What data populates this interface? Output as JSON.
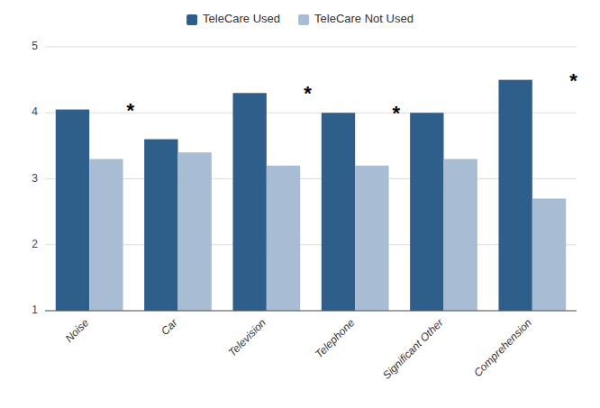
{
  "chart_data": {
    "type": "bar",
    "categories": [
      "Noise",
      "Car",
      "Television",
      "Telephone",
      "Significant Other",
      "Comprehension"
    ],
    "series": [
      {
        "name": "TeleCare Used",
        "color": "#2E5F8A",
        "values": [
          4.05,
          3.6,
          4.3,
          4.0,
          4.0,
          4.5
        ]
      },
      {
        "name": "TeleCare Not Used",
        "color": "#A8BDD4",
        "values": [
          3.3,
          3.4,
          3.2,
          3.2,
          3.3,
          2.7
        ]
      }
    ],
    "annotations": [
      {
        "text": "*",
        "category": "Noise",
        "y": 4.05
      },
      {
        "text": "*",
        "category": "Television",
        "y": 4.3
      },
      {
        "text": "*",
        "category": "Telephone",
        "y": 4.0
      },
      {
        "text": "*",
        "category": "Comprehension",
        "y": 4.5
      }
    ],
    "ylim": [
      1,
      5
    ],
    "yticks": [
      1,
      2,
      3,
      4,
      5
    ],
    "grid": true,
    "legend": "top"
  }
}
